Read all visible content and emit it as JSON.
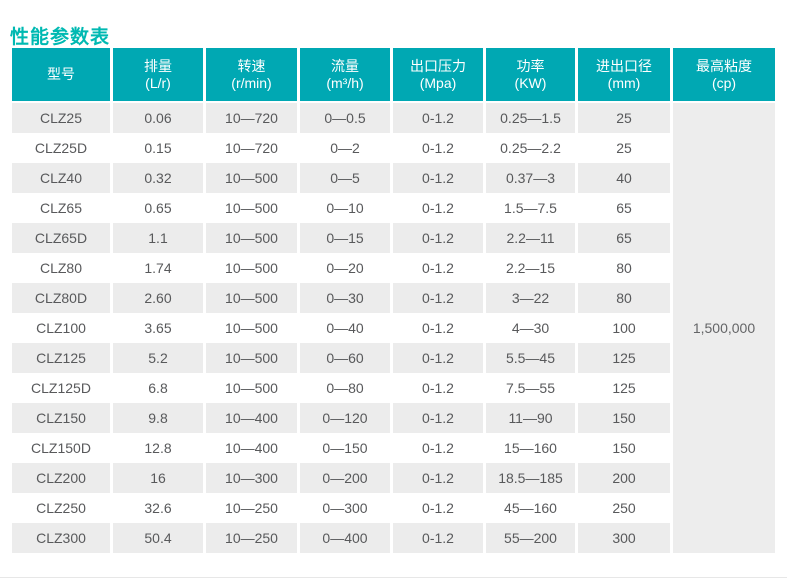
{
  "page_title": "性能参数表",
  "colors": {
    "title_text": "#00b9b2",
    "header_bg": "#00a8b3",
    "header_text": "#ffffff",
    "row_alt_bg": "#ececec",
    "row_bg": "#ffffff",
    "body_text": "#58595b",
    "merged_cell_bg": "#ededed"
  },
  "table": {
    "headers": [
      {
        "key": "model",
        "line1": "型号",
        "line2": ""
      },
      {
        "key": "displacement",
        "line1": "排量",
        "line2": "(L/r)"
      },
      {
        "key": "speed",
        "line1": "转速",
        "line2": "(r/min)"
      },
      {
        "key": "flow",
        "line1": "流量",
        "line2": "(m³/h)"
      },
      {
        "key": "outlet-pressure",
        "line1": "出口压力",
        "line2": "(Mpa)"
      },
      {
        "key": "power",
        "line1": "功率",
        "line2": "(KW)"
      },
      {
        "key": "port-diameter",
        "line1": "进出口径",
        "line2": "(mm)"
      },
      {
        "key": "max-viscosity",
        "line1": "最高粘度",
        "line2": "(cp)"
      }
    ],
    "rows": [
      [
        "CLZ25",
        "0.06",
        "10—720",
        "0—0.5",
        "0-1.2",
        "0.25—1.5",
        "25"
      ],
      [
        "CLZ25D",
        "0.15",
        "10—720",
        "0—2",
        "0-1.2",
        "0.25—2.2",
        "25"
      ],
      [
        "CLZ40",
        "0.32",
        "10—500",
        "0—5",
        "0-1.2",
        "0.37—3",
        "40"
      ],
      [
        "CLZ65",
        "0.65",
        "10—500",
        "0—10",
        "0-1.2",
        "1.5—7.5",
        "65"
      ],
      [
        "CLZ65D",
        "1.1",
        "10—500",
        "0—15",
        "0-1.2",
        "2.2—11",
        "65"
      ],
      [
        "CLZ80",
        "1.74",
        "10—500",
        "0—20",
        "0-1.2",
        "2.2—15",
        "80"
      ],
      [
        "CLZ80D",
        "2.60",
        "10—500",
        "0—30",
        "0-1.2",
        "3—22",
        "80"
      ],
      [
        "CLZ100",
        "3.65",
        "10—500",
        "0—40",
        "0-1.2",
        "4—30",
        "100"
      ],
      [
        "CLZ125",
        "5.2",
        "10—500",
        "0—60",
        "0-1.2",
        "5.5—45",
        "125"
      ],
      [
        "CLZ125D",
        "6.8",
        "10—500",
        "0—80",
        "0-1.2",
        "7.5—55",
        "125"
      ],
      [
        "CLZ150",
        "9.8",
        "10—400",
        "0—120",
        "0-1.2",
        "11—90",
        "150"
      ],
      [
        "CLZ150D",
        "12.8",
        "10—400",
        "0—150",
        "0-1.2",
        "15—160",
        "150"
      ],
      [
        "CLZ200",
        "16",
        "10—300",
        "0—200",
        "0-1.2",
        "18.5—185",
        "200"
      ],
      [
        "CLZ250",
        "32.6",
        "10—250",
        "0—300",
        "0-1.2",
        "45—160",
        "250"
      ],
      [
        "CLZ300",
        "50.4",
        "10—250",
        "0—400",
        "0-1.2",
        "55—200",
        "300"
      ]
    ],
    "merged_viscosity_value": "1,500,000"
  }
}
